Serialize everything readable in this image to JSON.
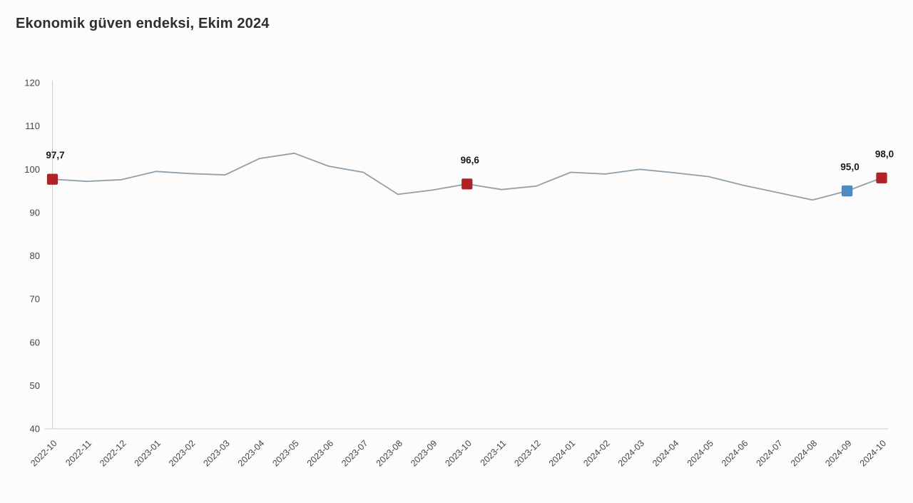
{
  "chart_data": {
    "type": "line",
    "title": "Ekonomik güven endeksi, Ekim 2024",
    "x": [
      "2022-10",
      "2022-11",
      "2022-12",
      "2023-01",
      "2023-02",
      "2023-03",
      "2023-04",
      "2023-05",
      "2023-06",
      "2023-07",
      "2023-08",
      "2023-09",
      "2023-10",
      "2023-11",
      "2023-12",
      "2024-01",
      "2024-02",
      "2024-03",
      "2024-04",
      "2024-05",
      "2024-06",
      "2024-07",
      "2024-08",
      "2024-09",
      "2024-10"
    ],
    "values": [
      97.7,
      97.2,
      97.6,
      99.5,
      99.0,
      98.7,
      102.5,
      103.7,
      100.7,
      99.3,
      94.2,
      95.2,
      96.6,
      95.3,
      96.1,
      99.3,
      98.9,
      100.0,
      99.2,
      98.3,
      96.3,
      94.6,
      92.9,
      95.0,
      98.0
    ],
    "ylim": [
      40,
      120
    ],
    "yticks": [
      40,
      50,
      60,
      70,
      80,
      90,
      100,
      110,
      120
    ],
    "grid": false,
    "legend": "none",
    "line_color": "#8fa0ac",
    "axis_color": "#cccccc",
    "tick_label_color": "#454545",
    "highlighted_points": [
      {
        "x": "2022-10",
        "value": 97.7,
        "label": "97,7",
        "color": "#b12226"
      },
      {
        "x": "2023-10",
        "value": 96.6,
        "label": "96,6",
        "color": "#b12226"
      },
      {
        "x": "2024-09",
        "value": 95.0,
        "label": "95,0",
        "color": "#4e8bc0"
      },
      {
        "x": "2024-10",
        "value": 98.0,
        "label": "98,0",
        "color": "#b12226"
      }
    ]
  }
}
